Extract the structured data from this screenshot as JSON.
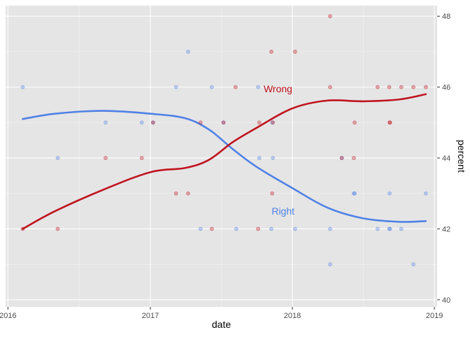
{
  "chart_data": {
    "type": "scatter",
    "xlabel": "date",
    "ylabel": "percent",
    "xlim": [
      "2015-12-26",
      "2019-01-08"
    ],
    "ylim": [
      39.8,
      48.3
    ],
    "x_ticks": [
      "2016-01-01",
      "2017-01-01",
      "2018-01-01",
      "2019-01-01"
    ],
    "x_tick_labels": [
      "2016",
      "2017",
      "2018",
      "2019"
    ],
    "y_ticks": [
      40,
      42,
      44,
      46,
      48
    ],
    "y_tick_labels": [
      "40",
      "42",
      "44",
      "46",
      "48"
    ],
    "y_axis_position": "right",
    "grid": true,
    "background": "#e5e5e5",
    "series": [
      {
        "name": "Right",
        "color": "#4f81e6",
        "points": [
          [
            "2016-02-08",
            46
          ],
          [
            "2016-05-08",
            44
          ],
          [
            "2016-09-08",
            45
          ],
          [
            "2016-12-10",
            45
          ],
          [
            "2017-01-08",
            45
          ],
          [
            "2017-03-08",
            46
          ],
          [
            "2017-04-08",
            47
          ],
          [
            "2017-05-10",
            42
          ],
          [
            "2017-06-08",
            46
          ],
          [
            "2017-07-08",
            45
          ],
          [
            "2017-08-10",
            42
          ],
          [
            "2017-10-05",
            46
          ],
          [
            "2017-10-08",
            44
          ],
          [
            "2017-11-08",
            42
          ],
          [
            "2017-11-10",
            45
          ],
          [
            "2017-11-12",
            44
          ],
          [
            "2018-01-08",
            42
          ],
          [
            "2018-04-08",
            41
          ],
          [
            "2018-04-08",
            42
          ],
          [
            "2018-05-08",
            44
          ],
          [
            "2018-06-08",
            43
          ],
          [
            "2018-06-10",
            43
          ],
          [
            "2018-08-08",
            42
          ],
          [
            "2018-09-07",
            42
          ],
          [
            "2018-09-09",
            42
          ],
          [
            "2018-09-08",
            43
          ],
          [
            "2018-10-08",
            42
          ],
          [
            "2018-11-08",
            41
          ],
          [
            "2018-12-10",
            43
          ]
        ],
        "smooth": [
          [
            "2016-02-08",
            45.1
          ],
          [
            "2016-05-01",
            45.25
          ],
          [
            "2016-09-01",
            45.33
          ],
          [
            "2017-01-01",
            45.25
          ],
          [
            "2017-04-01",
            45.12
          ],
          [
            "2017-06-01",
            44.8
          ],
          [
            "2017-08-01",
            44.25
          ],
          [
            "2017-10-01",
            43.75
          ],
          [
            "2018-01-01",
            43.15
          ],
          [
            "2018-04-01",
            42.6
          ],
          [
            "2018-07-01",
            42.3
          ],
          [
            "2018-10-01",
            42.2
          ],
          [
            "2018-12-10",
            42.22
          ]
        ],
        "label_position": [
          "2017-12-08",
          42.5
        ]
      },
      {
        "name": "Wrong",
        "color": "#c0131e",
        "points": [
          [
            "2016-02-08",
            42
          ],
          [
            "2016-05-08",
            42
          ],
          [
            "2016-09-08",
            44
          ],
          [
            "2016-12-10",
            44
          ],
          [
            "2017-01-08",
            45
          ],
          [
            "2017-03-08",
            43
          ],
          [
            "2017-04-08",
            43
          ],
          [
            "2017-05-10",
            45
          ],
          [
            "2017-06-08",
            42
          ],
          [
            "2017-07-08",
            45
          ],
          [
            "2017-08-08",
            46
          ],
          [
            "2017-10-08",
            45
          ],
          [
            "2017-10-05",
            42
          ],
          [
            "2017-11-08",
            47
          ],
          [
            "2017-11-10",
            43
          ],
          [
            "2017-11-12",
            45
          ],
          [
            "2018-01-08",
            47
          ],
          [
            "2018-04-08",
            48
          ],
          [
            "2018-04-08",
            46
          ],
          [
            "2018-05-08",
            44
          ],
          [
            "2018-06-08",
            44
          ],
          [
            "2018-06-10",
            45
          ],
          [
            "2018-08-08",
            46
          ],
          [
            "2018-09-07",
            46
          ],
          [
            "2018-09-09",
            45
          ],
          [
            "2018-09-08",
            45
          ],
          [
            "2018-10-08",
            46
          ],
          [
            "2018-11-08",
            46
          ],
          [
            "2018-12-10",
            46
          ]
        ],
        "smooth": [
          [
            "2016-02-08",
            42.0
          ],
          [
            "2016-05-01",
            42.5
          ],
          [
            "2016-09-01",
            43.1
          ],
          [
            "2017-01-01",
            43.6
          ],
          [
            "2017-04-01",
            43.72
          ],
          [
            "2017-06-01",
            43.95
          ],
          [
            "2017-08-01",
            44.45
          ],
          [
            "2017-10-01",
            44.85
          ],
          [
            "2018-01-01",
            45.4
          ],
          [
            "2018-04-01",
            45.62
          ],
          [
            "2018-07-01",
            45.6
          ],
          [
            "2018-10-01",
            45.65
          ],
          [
            "2018-12-10",
            45.8
          ]
        ],
        "label_position": [
          "2017-11-25",
          45.95
        ]
      }
    ]
  }
}
